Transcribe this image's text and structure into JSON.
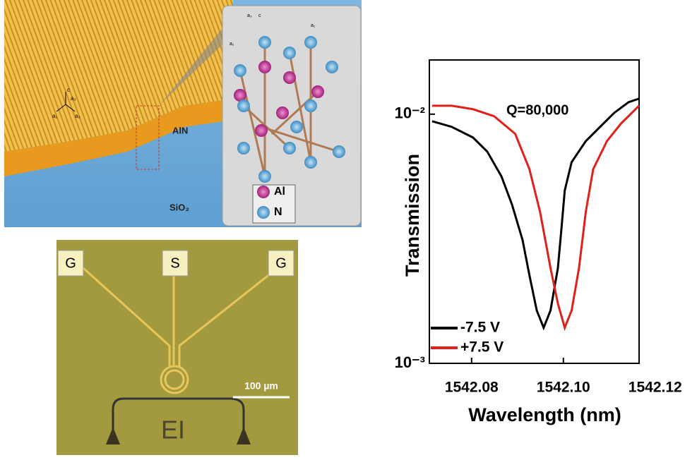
{
  "crystal_figure": {
    "film": "AlN",
    "substrate": "SiO₂",
    "axes": [
      "c",
      "a₃",
      "a₁",
      "a₂"
    ],
    "inset": {
      "axes": [
        "c",
        "a₃",
        "a₂",
        "a₁"
      ],
      "legend": [
        "Al",
        "N"
      ]
    }
  },
  "device_image": {
    "pads": [
      "G",
      "S",
      "G"
    ],
    "scale_bar": "100 µm",
    "marking": "EI"
  },
  "chart_data": {
    "type": "line",
    "log_y": true,
    "xlabel": "Wavelength (nm)",
    "ylabel": "Transmission",
    "annotation": "Q=80,000",
    "xlim": [
      1542.0708,
      1542.1165
    ],
    "xticks": [
      1542.08,
      {
        "value": 1542.1,
        "label": "1542.10"
      },
      1542.12
    ],
    "ylim": [
      0.001,
      0.0165
    ],
    "yticks": [
      {
        "value": 0.01,
        "label": "10⁻²"
      },
      {
        "value": 0.001,
        "label": "10⁻³"
      }
    ],
    "legend": "lower left",
    "series": [
      {
        "name": "-7.5 V",
        "color": "#000000",
        "x": [
          1542.0714,
          1542.0757,
          1542.0803,
          1542.0834,
          1542.0865,
          1542.0888,
          1542.0911,
          1542.0926,
          1542.0942,
          1542.0957,
          1542.0972,
          1542.0988,
          1542.0995,
          1542.1003,
          1542.1018,
          1542.1049,
          1542.108,
          1542.1111,
          1542.1142,
          1542.1165
        ],
        "values": [
          0.00937,
          0.00889,
          0.00806,
          0.00708,
          0.00563,
          0.00434,
          0.00313,
          0.00226,
          0.00163,
          0.00139,
          0.00163,
          0.00241,
          0.00334,
          0.00494,
          0.00642,
          0.0078,
          0.00889,
          0.01013,
          0.01117,
          0.01154
        ]
      },
      {
        "name": "+7.5 V",
        "color": "#e0201b",
        "x": [
          1542.0714,
          1542.0757,
          1542.0803,
          1542.0849,
          1542.0895,
          1542.0926,
          1542.0949,
          1542.0972,
          1542.0988,
          1542.1003,
          1542.1018,
          1542.1034,
          1542.1049,
          1542.1065,
          1542.1095,
          1542.1126,
          1542.1165
        ],
        "values": [
          0.01081,
          0.01081,
          0.01047,
          0.00981,
          0.00834,
          0.00602,
          0.00407,
          0.00241,
          0.00174,
          0.00139,
          0.00163,
          0.00241,
          0.00407,
          0.00602,
          0.0078,
          0.00919,
          0.01081
        ]
      }
    ]
  }
}
